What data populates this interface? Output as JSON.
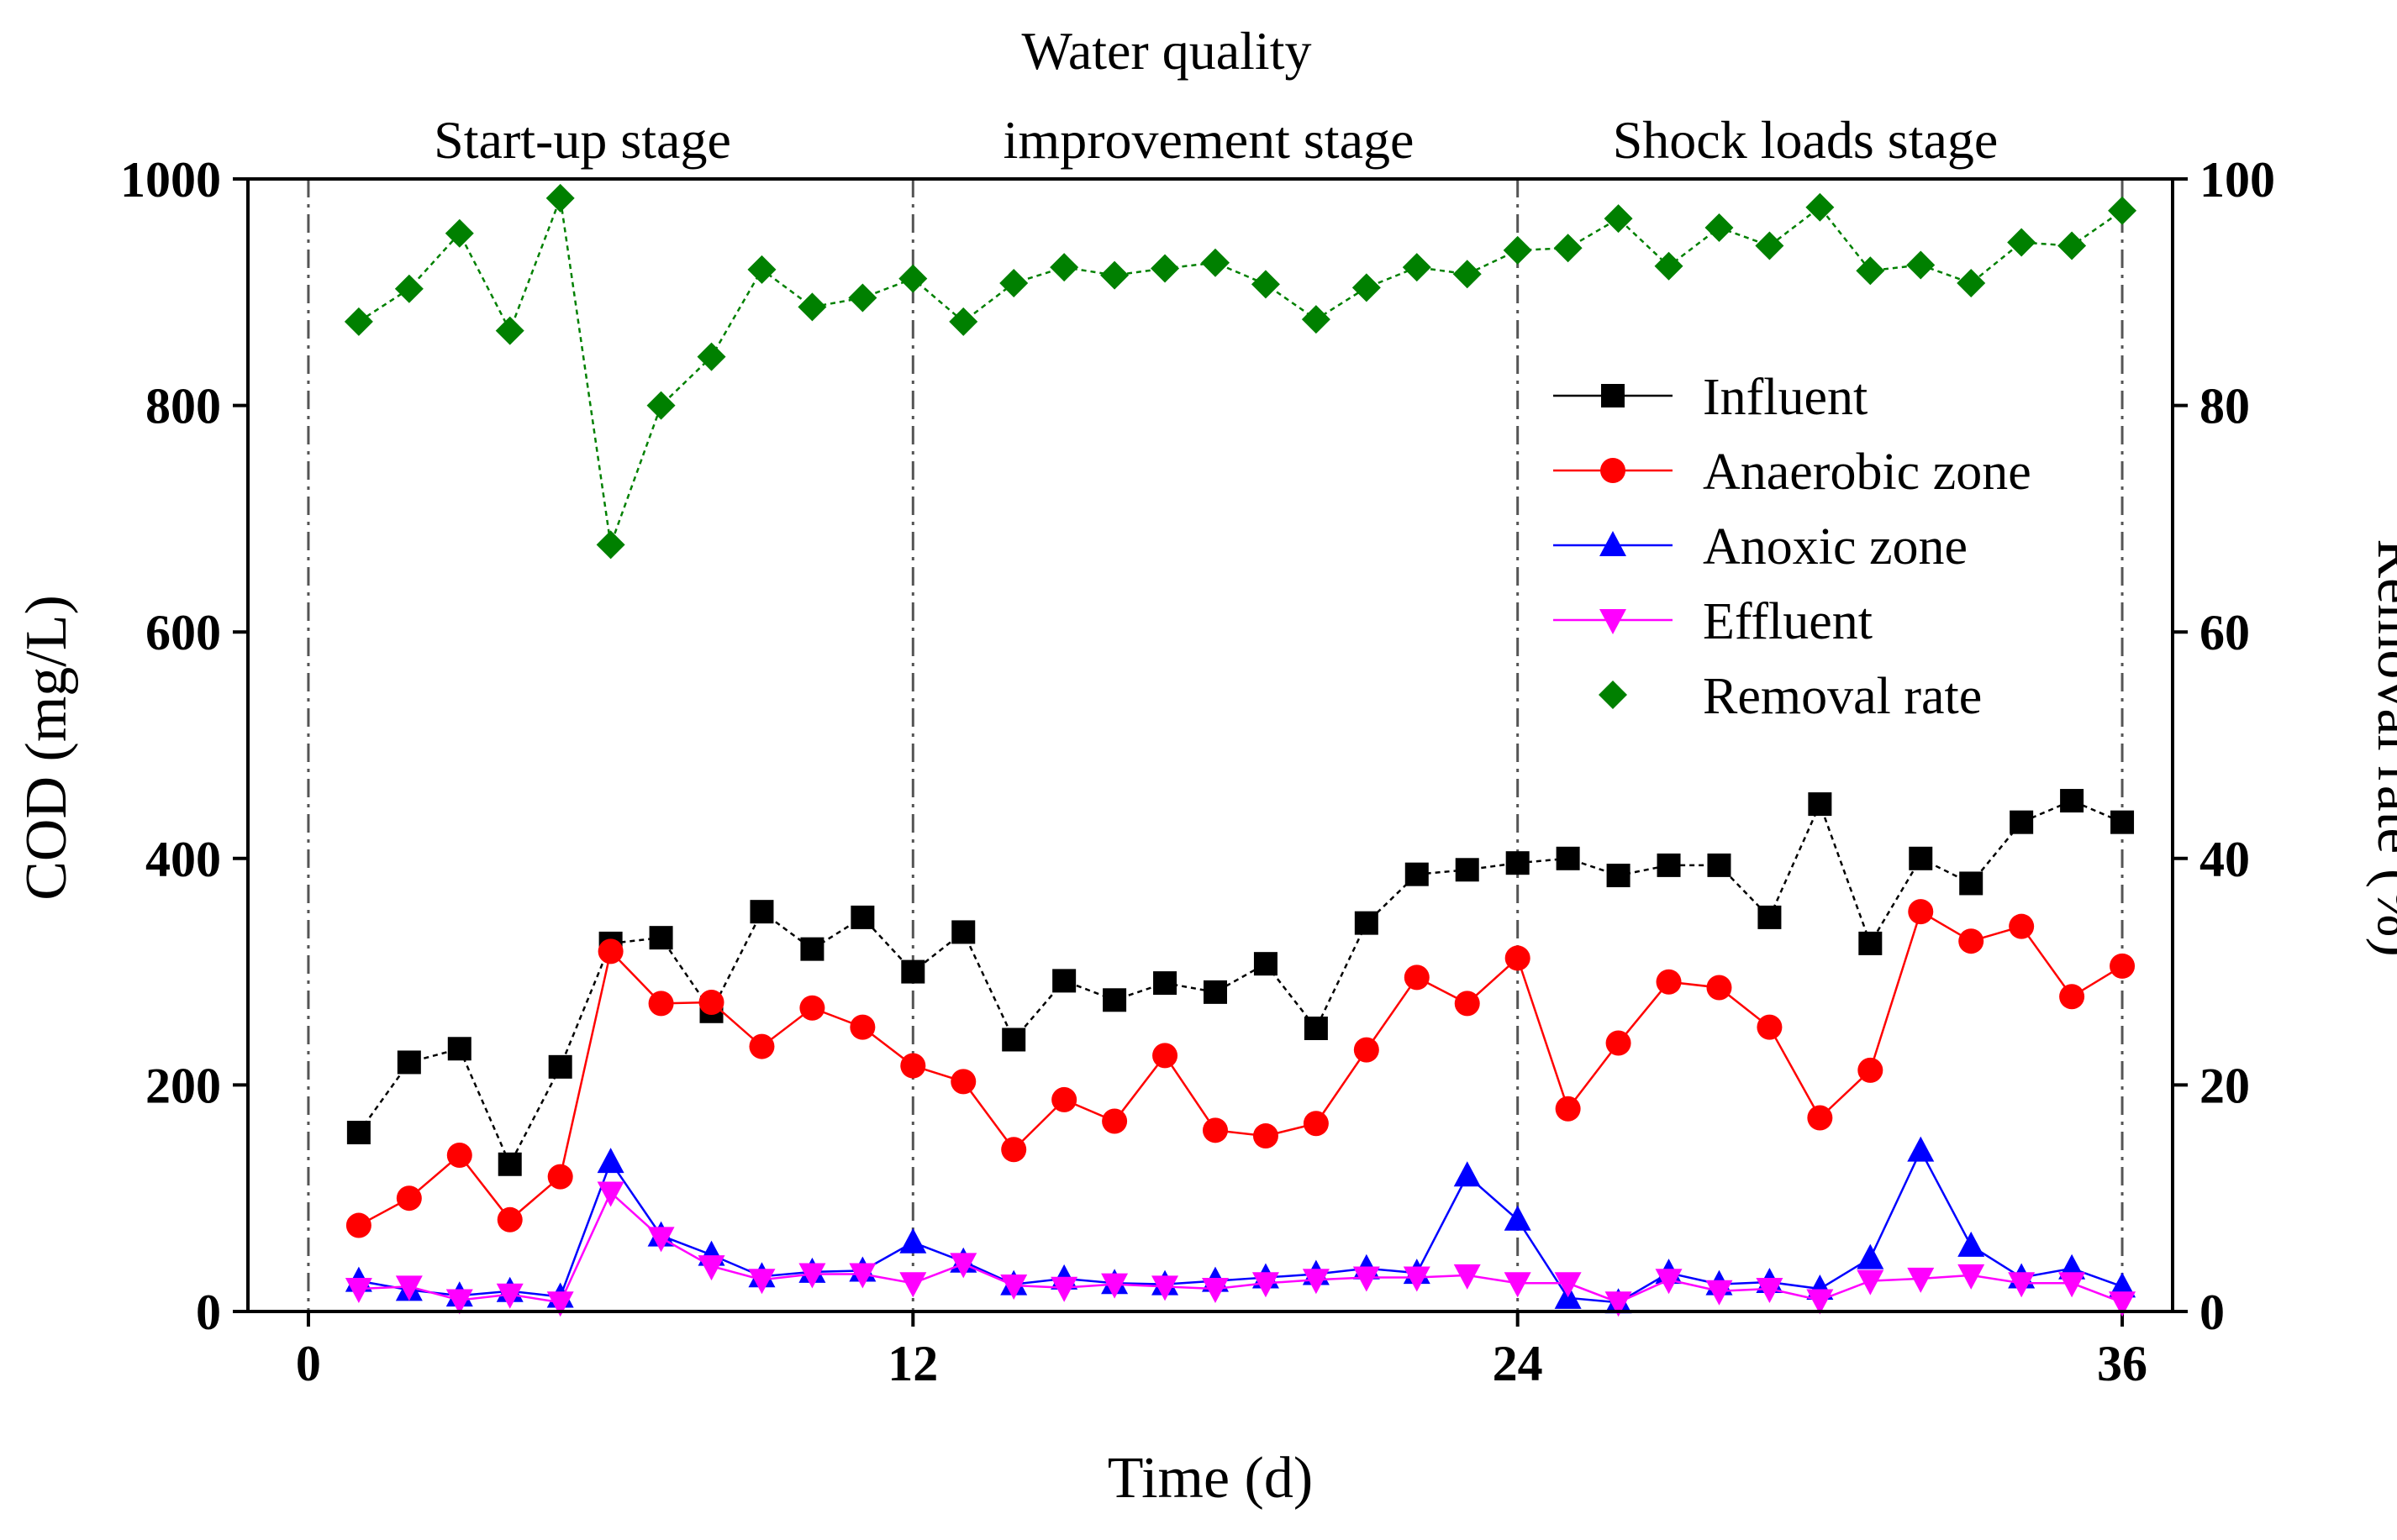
{
  "chart_data": {
    "type": "line",
    "stage_labels": {
      "startup": "Start-up stage",
      "improvement_line1": "Water quality",
      "improvement_line2": "improvement stage",
      "shock": "Shock loads stage"
    },
    "xlabel": "Time (d)",
    "ylabel_left": "COD (mg/L)",
    "ylabel_right": "Removal rate (%)",
    "xlim": [
      -1.2,
      37
    ],
    "ylim_left": [
      0,
      1000
    ],
    "ylim_right": [
      0,
      100
    ],
    "x_ticks": [
      0,
      12,
      24,
      36
    ],
    "y_ticks_left": [
      0,
      200,
      400,
      600,
      800,
      1000
    ],
    "y_ticks_right": [
      0,
      20,
      40,
      60,
      80,
      100
    ],
    "stage_dividers": [
      0,
      12,
      24,
      36
    ],
    "x": [
      1,
      2,
      3,
      4,
      5,
      6,
      7,
      8,
      9,
      10,
      11,
      12,
      13,
      14,
      15,
      16,
      17,
      18,
      19,
      20,
      21,
      22,
      23,
      24,
      25,
      26,
      27,
      28,
      29,
      30,
      31,
      32,
      33,
      34,
      35,
      36
    ],
    "series": [
      {
        "name": "Influent",
        "axis": "left",
        "marker": "square",
        "color": "#000000",
        "values": [
          158,
          220,
          232,
          130,
          216,
          325,
          330,
          265,
          353,
          320,
          348,
          300,
          335,
          240,
          292,
          275,
          290,
          282,
          307,
          250,
          343,
          386,
          390,
          396,
          400,
          385,
          394,
          394,
          348,
          448,
          325,
          400,
          378,
          432,
          451,
          432
        ]
      },
      {
        "name": "Anaerobic zone",
        "axis": "left",
        "marker": "circle",
        "color": "#ff0000",
        "values": [
          76,
          100,
          138,
          81,
          119,
          318,
          272,
          273,
          234,
          268,
          251,
          217,
          203,
          143,
          187,
          168,
          226,
          160,
          155,
          166,
          231,
          295,
          272,
          312,
          179,
          237,
          291,
          286,
          251,
          171,
          213,
          353,
          327,
          340,
          278,
          305
        ]
      },
      {
        "name": "Anoxic zone",
        "axis": "left",
        "marker": "triangle-up",
        "color": "#0000ff",
        "values": [
          27,
          19,
          14,
          18,
          13,
          132,
          67,
          50,
          31,
          35,
          36,
          61,
          44,
          24,
          29,
          25,
          24,
          27,
          30,
          33,
          38,
          34,
          120,
          81,
          12,
          8,
          34,
          24,
          26,
          20,
          47,
          142,
          58,
          30,
          38,
          22
        ]
      },
      {
        "name": "Effluent",
        "axis": "left",
        "marker": "triangle-down",
        "color": "#ff00ff",
        "values": [
          20,
          22,
          10,
          15,
          8,
          105,
          65,
          40,
          28,
          33,
          33,
          25,
          42,
          23,
          21,
          24,
          22,
          20,
          25,
          28,
          30,
          30,
          32,
          25,
          25,
          8,
          28,
          18,
          20,
          10,
          27,
          29,
          32,
          25,
          25,
          8
        ]
      },
      {
        "name": "Removal rate",
        "axis": "right",
        "marker": "diamond",
        "color": "#008000",
        "values": [
          87.4,
          90.3,
          95.2,
          86.6,
          98.3,
          67.7,
          80.0,
          84.3,
          92.0,
          88.7,
          89.5,
          91.2,
          87.4,
          90.8,
          92.2,
          91.5,
          92.1,
          92.6,
          90.7,
          87.6,
          90.4,
          92.2,
          91.6,
          93.7,
          93.9,
          96.5,
          92.3,
          95.7,
          94.1,
          97.5,
          91.9,
          92.4,
          90.8,
          94.4,
          94.1,
          97.2
        ]
      }
    ],
    "legend_position": "right, upper-middle"
  }
}
